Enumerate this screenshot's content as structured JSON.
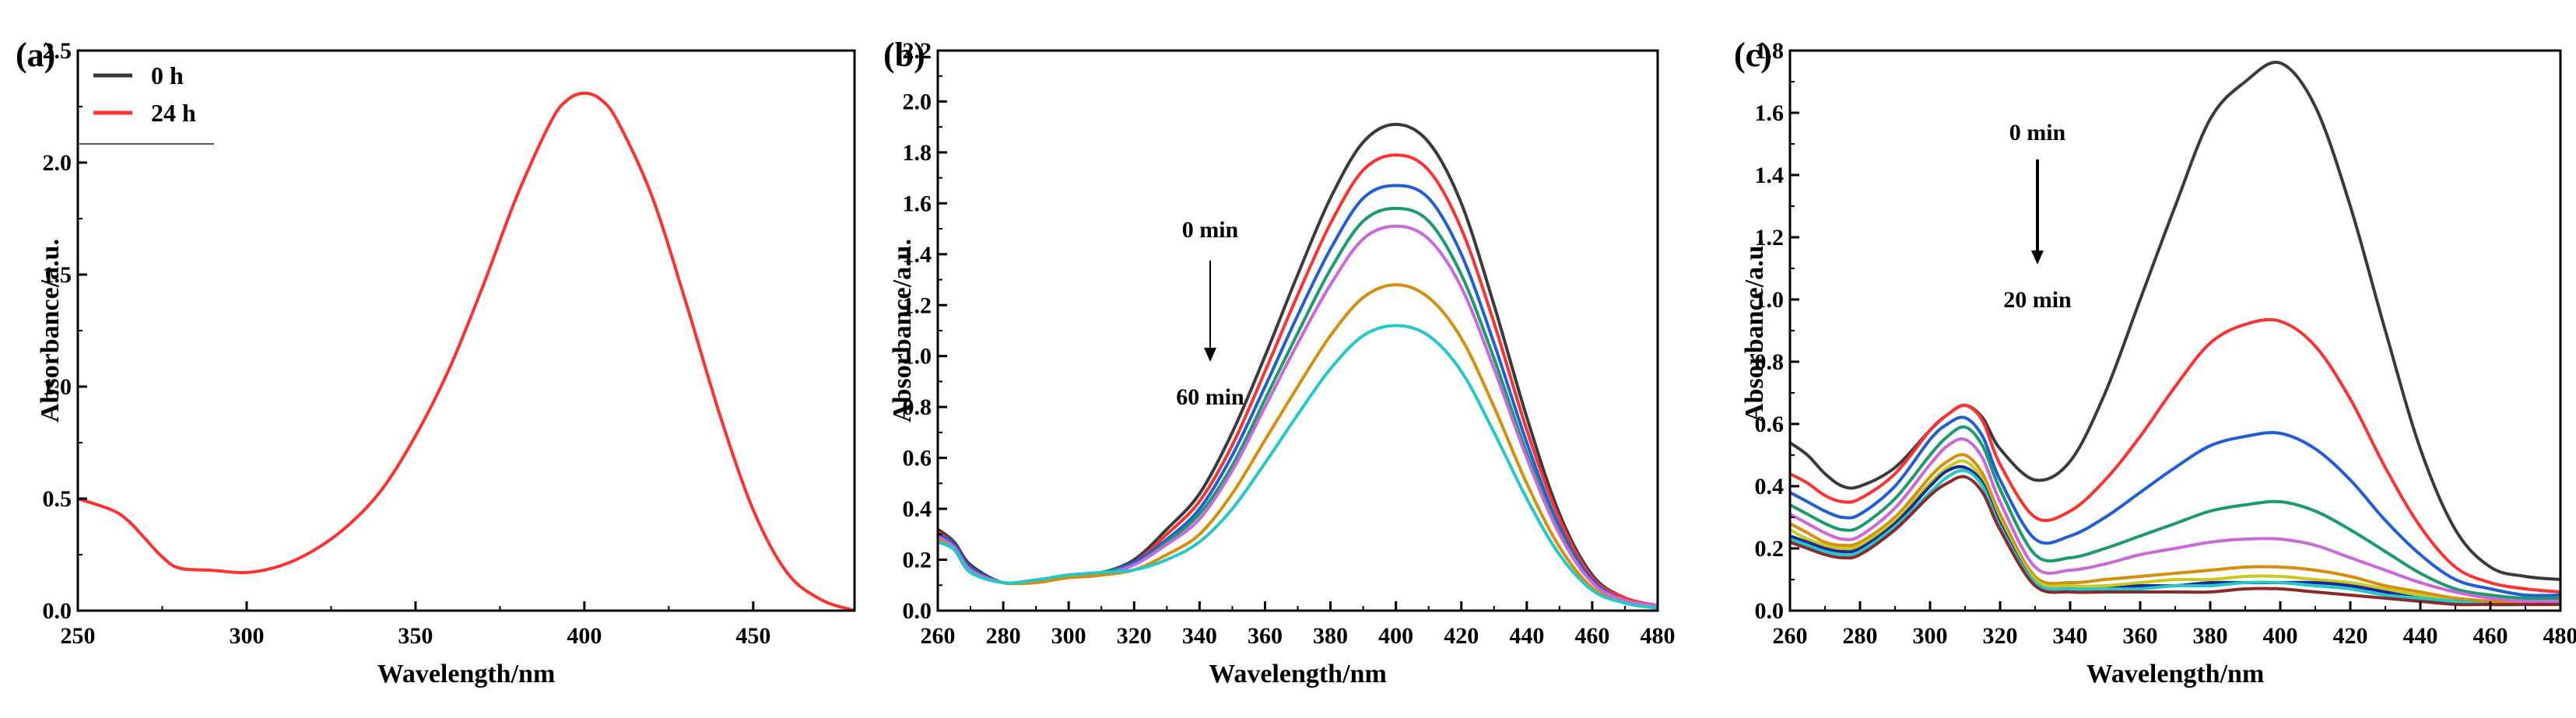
{
  "chart_data": [
    {
      "type": "line",
      "panel_label": "(a)",
      "xlabel": "Wavelength/nm",
      "ylabel": "Absorbance/a.u.",
      "xlim": [
        250,
        480
      ],
      "ylim": [
        0,
        2.5
      ],
      "xticks": [
        "250",
        "300",
        "350",
        "400",
        "450"
      ],
      "yticks": [
        "0.0",
        "0.5",
        "1.0",
        "1.5",
        "2.0",
        "2.5"
      ],
      "legend": {
        "position": "top-left",
        "entries": [
          "0 h",
          "24 h"
        ]
      },
      "series": [
        {
          "name": "0 h",
          "color": "#3a3a3a",
          "width": 3,
          "x": [
            250,
            260,
            265,
            270,
            275,
            280,
            290,
            300,
            310,
            320,
            330,
            340,
            350,
            360,
            370,
            380,
            390,
            395,
            400,
            405,
            410,
            420,
            430,
            440,
            450,
            460,
            470,
            480
          ],
          "y": [
            0.5,
            0.45,
            0.4,
            0.32,
            0.24,
            0.19,
            0.18,
            0.17,
            0.2,
            0.27,
            0.38,
            0.54,
            0.78,
            1.08,
            1.45,
            1.85,
            2.18,
            2.28,
            2.31,
            2.28,
            2.18,
            1.85,
            1.38,
            0.88,
            0.45,
            0.17,
            0.05,
            0.0
          ]
        },
        {
          "name": "24 h",
          "color": "#ff3030",
          "width": 4,
          "x": [
            250,
            260,
            265,
            270,
            275,
            280,
            290,
            300,
            310,
            320,
            330,
            340,
            350,
            360,
            370,
            380,
            390,
            395,
            400,
            405,
            410,
            420,
            430,
            440,
            450,
            460,
            470,
            480
          ],
          "y": [
            0.5,
            0.45,
            0.4,
            0.32,
            0.24,
            0.19,
            0.18,
            0.17,
            0.2,
            0.27,
            0.38,
            0.54,
            0.78,
            1.08,
            1.45,
            1.85,
            2.18,
            2.28,
            2.31,
            2.28,
            2.18,
            1.85,
            1.38,
            0.88,
            0.45,
            0.17,
            0.05,
            0.0
          ]
        }
      ]
    },
    {
      "type": "line",
      "panel_label": "(b)",
      "xlabel": "Wavelength/nm",
      "ylabel": "Absorbance/a.u.",
      "xlim": [
        260,
        480
      ],
      "ylim": [
        0,
        2.2
      ],
      "xticks": [
        "260",
        "280",
        "300",
        "320",
        "340",
        "360",
        "380",
        "400",
        "420",
        "440",
        "460",
        "480"
      ],
      "yticks": [
        "0.0",
        "0.2",
        "0.4",
        "0.6",
        "0.8",
        "1.0",
        "1.2",
        "1.4",
        "1.6",
        "1.8",
        "2.0",
        "2.2"
      ],
      "annotations": {
        "start": "0 min",
        "end": "60 min"
      },
      "x": [
        260,
        265,
        270,
        280,
        290,
        300,
        310,
        320,
        330,
        340,
        350,
        360,
        370,
        380,
        390,
        400,
        410,
        420,
        430,
        440,
        450,
        460,
        470,
        480
      ],
      "series": [
        {
          "name": "0 min",
          "color": "#3a3a3a",
          "y": [
            0.32,
            0.27,
            0.18,
            0.11,
            0.12,
            0.14,
            0.15,
            0.2,
            0.32,
            0.46,
            0.7,
            1.0,
            1.32,
            1.62,
            1.84,
            1.91,
            1.84,
            1.6,
            1.2,
            0.76,
            0.38,
            0.14,
            0.05,
            0.02
          ]
        },
        {
          "name": "",
          "color": "#ff3030",
          "y": [
            0.31,
            0.26,
            0.17,
            0.11,
            0.12,
            0.14,
            0.15,
            0.19,
            0.3,
            0.43,
            0.65,
            0.94,
            1.24,
            1.52,
            1.73,
            1.79,
            1.73,
            1.5,
            1.13,
            0.71,
            0.36,
            0.13,
            0.05,
            0.02
          ]
        },
        {
          "name": "",
          "color": "#1f5ed8",
          "y": [
            0.3,
            0.26,
            0.17,
            0.11,
            0.12,
            0.14,
            0.15,
            0.19,
            0.28,
            0.4,
            0.61,
            0.88,
            1.16,
            1.42,
            1.62,
            1.67,
            1.62,
            1.4,
            1.05,
            0.66,
            0.33,
            0.12,
            0.04,
            0.02
          ]
        },
        {
          "name": "",
          "color": "#1a9b6c",
          "y": [
            0.29,
            0.25,
            0.16,
            0.11,
            0.12,
            0.14,
            0.15,
            0.18,
            0.27,
            0.38,
            0.57,
            0.83,
            1.09,
            1.34,
            1.53,
            1.58,
            1.53,
            1.32,
            0.99,
            0.62,
            0.31,
            0.11,
            0.04,
            0.02
          ]
        },
        {
          "name": "",
          "color": "#cc66dd",
          "y": [
            0.29,
            0.25,
            0.16,
            0.11,
            0.12,
            0.13,
            0.14,
            0.18,
            0.26,
            0.36,
            0.55,
            0.8,
            1.05,
            1.28,
            1.46,
            1.51,
            1.46,
            1.27,
            0.95,
            0.6,
            0.3,
            0.11,
            0.04,
            0.02
          ]
        },
        {
          "name": "",
          "color": "#d4900a",
          "y": [
            0.28,
            0.24,
            0.15,
            0.11,
            0.11,
            0.13,
            0.14,
            0.16,
            0.22,
            0.3,
            0.46,
            0.67,
            0.88,
            1.08,
            1.23,
            1.28,
            1.23,
            1.07,
            0.8,
            0.5,
            0.25,
            0.09,
            0.03,
            0.01
          ]
        },
        {
          "name": "60 min",
          "color": "#22c8cc",
          "y": [
            0.27,
            0.24,
            0.15,
            0.11,
            0.12,
            0.14,
            0.15,
            0.16,
            0.2,
            0.27,
            0.4,
            0.58,
            0.77,
            0.95,
            1.08,
            1.12,
            1.08,
            0.94,
            0.7,
            0.44,
            0.22,
            0.08,
            0.03,
            0.01
          ]
        }
      ]
    },
    {
      "type": "line",
      "panel_label": "(c)",
      "xlabel": "Wavelength/nm",
      "ylabel": "Absorbance/a.u.",
      "xlim": [
        260,
        480
      ],
      "ylim": [
        0,
        1.8
      ],
      "xticks": [
        "260",
        "280",
        "300",
        "320",
        "340",
        "360",
        "380",
        "400",
        "420",
        "440",
        "460",
        "480"
      ],
      "yticks": [
        "0.0",
        "0.2",
        "0.4",
        "0.6",
        "0.8",
        "1.0",
        "1.2",
        "1.4",
        "1.6",
        "1.8"
      ],
      "annotations": {
        "start": "0 min",
        "end": "20 min"
      },
      "x": [
        260,
        265,
        270,
        275,
        280,
        290,
        300,
        305,
        310,
        315,
        320,
        330,
        340,
        350,
        360,
        370,
        380,
        390,
        400,
        410,
        420,
        430,
        440,
        450,
        460,
        470,
        480
      ],
      "series": [
        {
          "name": "0 min",
          "color": "#3a3a3a",
          "y": [
            0.54,
            0.5,
            0.44,
            0.4,
            0.4,
            0.46,
            0.58,
            0.63,
            0.66,
            0.62,
            0.52,
            0.42,
            0.48,
            0.7,
            1.0,
            1.3,
            1.58,
            1.7,
            1.76,
            1.62,
            1.3,
            0.9,
            0.52,
            0.26,
            0.14,
            0.11,
            0.1
          ]
        },
        {
          "name": "",
          "color": "#ff3030",
          "y": [
            0.44,
            0.41,
            0.37,
            0.35,
            0.36,
            0.44,
            0.58,
            0.63,
            0.66,
            0.61,
            0.47,
            0.3,
            0.32,
            0.42,
            0.56,
            0.72,
            0.86,
            0.92,
            0.93,
            0.85,
            0.68,
            0.46,
            0.27,
            0.14,
            0.09,
            0.07,
            0.06
          ]
        },
        {
          "name": "",
          "color": "#1f5ed8",
          "y": [
            0.38,
            0.35,
            0.32,
            0.3,
            0.31,
            0.4,
            0.55,
            0.6,
            0.62,
            0.56,
            0.42,
            0.23,
            0.24,
            0.3,
            0.38,
            0.46,
            0.53,
            0.56,
            0.57,
            0.52,
            0.42,
            0.29,
            0.18,
            0.1,
            0.07,
            0.05,
            0.05
          ]
        },
        {
          "name": "",
          "color": "#1a9b6c",
          "y": [
            0.34,
            0.31,
            0.28,
            0.26,
            0.27,
            0.36,
            0.5,
            0.56,
            0.59,
            0.53,
            0.39,
            0.18,
            0.17,
            0.2,
            0.24,
            0.28,
            0.32,
            0.34,
            0.35,
            0.32,
            0.26,
            0.19,
            0.12,
            0.07,
            0.05,
            0.04,
            0.04
          ]
        },
        {
          "name": "",
          "color": "#cc66dd",
          "y": [
            0.31,
            0.28,
            0.25,
            0.23,
            0.24,
            0.33,
            0.47,
            0.53,
            0.55,
            0.49,
            0.35,
            0.14,
            0.13,
            0.15,
            0.18,
            0.2,
            0.22,
            0.23,
            0.23,
            0.21,
            0.17,
            0.13,
            0.09,
            0.06,
            0.04,
            0.03,
            0.03
          ]
        },
        {
          "name": "",
          "color": "#d4900a",
          "y": [
            0.28,
            0.25,
            0.22,
            0.21,
            0.22,
            0.3,
            0.43,
            0.48,
            0.5,
            0.44,
            0.31,
            0.11,
            0.09,
            0.1,
            0.11,
            0.12,
            0.13,
            0.14,
            0.14,
            0.13,
            0.11,
            0.08,
            0.06,
            0.04,
            0.03,
            0.02,
            0.02
          ]
        },
        {
          "name": "",
          "color": "#c9c920",
          "y": [
            0.26,
            0.23,
            0.21,
            0.2,
            0.21,
            0.29,
            0.41,
            0.46,
            0.48,
            0.42,
            0.29,
            0.1,
            0.08,
            0.08,
            0.09,
            0.1,
            0.1,
            0.11,
            0.11,
            0.1,
            0.09,
            0.07,
            0.05,
            0.03,
            0.02,
            0.02,
            0.02
          ]
        },
        {
          "name": "",
          "color": "#1a2a99",
          "y": [
            0.24,
            0.22,
            0.2,
            0.19,
            0.2,
            0.28,
            0.4,
            0.45,
            0.46,
            0.41,
            0.28,
            0.09,
            0.07,
            0.07,
            0.08,
            0.08,
            0.09,
            0.09,
            0.09,
            0.09,
            0.08,
            0.06,
            0.04,
            0.03,
            0.02,
            0.02,
            0.02
          ]
        },
        {
          "name": "",
          "color": "#22c8cc",
          "y": [
            0.23,
            0.21,
            0.19,
            0.18,
            0.19,
            0.27,
            0.38,
            0.43,
            0.45,
            0.4,
            0.27,
            0.09,
            0.07,
            0.07,
            0.07,
            0.08,
            0.08,
            0.09,
            0.09,
            0.08,
            0.07,
            0.05,
            0.04,
            0.03,
            0.02,
            0.02,
            0.02
          ]
        },
        {
          "name": "20 min",
          "color": "#8a2a2a",
          "y": [
            0.22,
            0.2,
            0.18,
            0.17,
            0.18,
            0.26,
            0.37,
            0.41,
            0.43,
            0.38,
            0.26,
            0.08,
            0.06,
            0.06,
            0.06,
            0.06,
            0.06,
            0.07,
            0.07,
            0.06,
            0.05,
            0.04,
            0.03,
            0.02,
            0.02,
            0.02,
            0.02
          ]
        }
      ]
    }
  ]
}
